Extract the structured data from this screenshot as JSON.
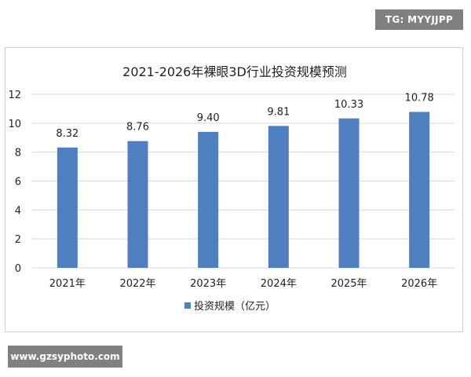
{
  "watermarks": {
    "top": "TG: MYYJJPP",
    "bottom": "www.gzsyphoto.com"
  },
  "colors": {
    "bar": "#4f7fc0",
    "axis_text": "#222222",
    "grid": "#d9d9d9"
  },
  "chart_data": {
    "type": "bar",
    "title": "2021-2026年裸眼3D行业投资规模预测",
    "categories": [
      "2021年",
      "2022年",
      "2023年",
      "2024年",
      "2025年",
      "2026年"
    ],
    "series": [
      {
        "name": "投资规模（亿元）",
        "values": [
          8.32,
          8.76,
          9.4,
          9.81,
          10.33,
          10.78
        ],
        "labels": [
          "8.32",
          "8.76",
          "9.40",
          "9.81",
          "10.33",
          "10.78"
        ]
      }
    ],
    "ylim": [
      0,
      12
    ],
    "yticks": [
      0,
      2,
      4,
      6,
      8,
      10,
      12
    ],
    "grid": true,
    "legend": "bottom"
  }
}
